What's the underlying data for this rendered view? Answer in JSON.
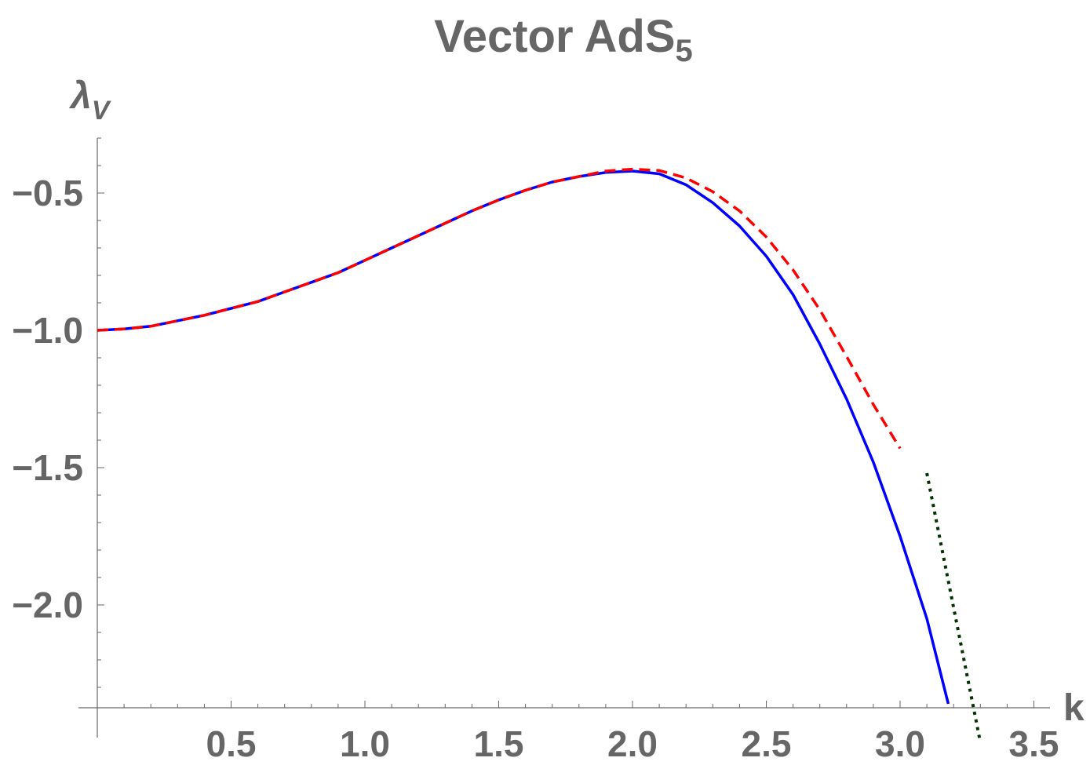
{
  "chart_data": {
    "type": "line",
    "title": "Vector AdS",
    "title_subscript": "5",
    "xlabel": "k",
    "ylabel": "λ",
    "ylabel_subscript": "V",
    "xlim": [
      0,
      3.6
    ],
    "ylim": [
      -2.37,
      -0.3
    ],
    "xticks": [
      0.5,
      1.0,
      1.5,
      2.0,
      2.5,
      3.0,
      3.5
    ],
    "xtick_labels": [
      "0.5",
      "1.0",
      "1.5",
      "2.0",
      "2.5",
      "3.0",
      "3.5"
    ],
    "yticks": [
      -0.5,
      -1.0,
      -1.5,
      -2.0
    ],
    "ytick_labels": [
      "−0.5",
      "−1.0",
      "−1.5",
      "−2.0"
    ],
    "grid": false,
    "colors": {
      "blue": "#0000ff",
      "red": "#ff0000",
      "green": "#003300",
      "axis": "#666666"
    },
    "series": [
      {
        "style": "solid",
        "color": "#0000ff",
        "x": [
          0,
          0.1,
          0.2,
          0.3,
          0.4,
          0.5,
          0.6,
          0.7,
          0.8,
          0.9,
          1.0,
          1.1,
          1.2,
          1.3,
          1.4,
          1.5,
          1.6,
          1.7,
          1.8,
          1.9,
          2.0,
          2.1,
          2.2,
          2.3,
          2.4,
          2.5,
          2.6,
          2.7,
          2.8,
          2.9,
          3.0,
          3.1,
          3.18
        ],
        "y": [
          -1.0,
          -0.995,
          -0.985,
          -0.965,
          -0.945,
          -0.92,
          -0.895,
          -0.86,
          -0.825,
          -0.79,
          -0.745,
          -0.7,
          -0.655,
          -0.61,
          -0.565,
          -0.525,
          -0.49,
          -0.46,
          -0.44,
          -0.425,
          -0.42,
          -0.43,
          -0.47,
          -0.535,
          -0.62,
          -0.73,
          -0.87,
          -1.05,
          -1.25,
          -1.48,
          -1.75,
          -2.05,
          -2.36
        ]
      },
      {
        "style": "dashed",
        "color": "#ff0000",
        "x": [
          0,
          0.1,
          0.2,
          0.3,
          0.4,
          0.5,
          0.6,
          0.7,
          0.8,
          0.9,
          1.0,
          1.1,
          1.2,
          1.3,
          1.4,
          1.5,
          1.6,
          1.7,
          1.8,
          1.9,
          2.0,
          2.1,
          2.2,
          2.3,
          2.4,
          2.5,
          2.6,
          2.7,
          2.8,
          2.9,
          3.0
        ],
        "y": [
          -1.0,
          -0.995,
          -0.985,
          -0.965,
          -0.945,
          -0.92,
          -0.895,
          -0.86,
          -0.825,
          -0.79,
          -0.745,
          -0.7,
          -0.655,
          -0.61,
          -0.565,
          -0.525,
          -0.49,
          -0.46,
          -0.44,
          -0.42,
          -0.413,
          -0.418,
          -0.445,
          -0.495,
          -0.565,
          -0.66,
          -0.78,
          -0.925,
          -1.095,
          -1.27,
          -1.43
        ]
      },
      {
        "style": "dotted",
        "color": "#003300",
        "x": [
          3.1,
          3.3
        ],
        "y": [
          -1.52,
          -2.5
        ]
      }
    ]
  }
}
